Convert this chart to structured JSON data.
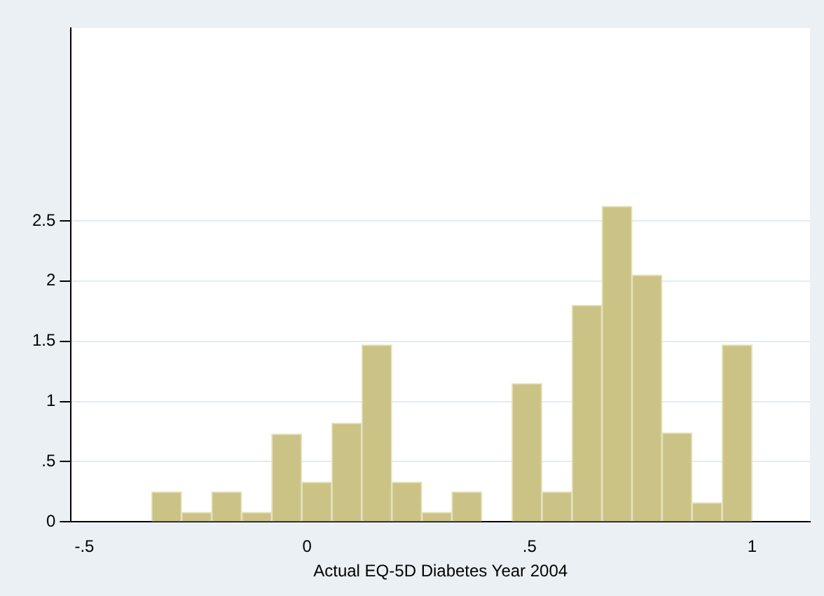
{
  "chart_data": {
    "type": "histogram",
    "xlabel": "Actual EQ-5D Diabetes Year 2004",
    "bins": [
      -0.349,
      -0.2816,
      -0.2141,
      -0.1467,
      -0.0792,
      -0.0118,
      0.0557,
      0.1231,
      0.1906,
      0.258,
      0.3255,
      0.3929,
      0.4604,
      0.5278,
      0.5953,
      0.6627,
      0.7302,
      0.7976,
      0.8651,
      0.9325,
      1.0
    ],
    "values": [
      0.25,
      0.08,
      0.25,
      0.08,
      0.73,
      0.33,
      0.82,
      1.47,
      0.33,
      0.08,
      0.25,
      0,
      1.15,
      0.25,
      1.8,
      2.62,
      2.05,
      0.74,
      0.16,
      1.47
    ],
    "color": "#cbc385",
    "xlim": [
      -0.53,
      1.13
    ],
    "xticks": [
      {
        "value": -0.5,
        "label": "-.5"
      },
      0,
      {
        "value": 0.5,
        "label": ".5"
      },
      1
    ],
    "ylim": [
      0,
      4.1
    ],
    "yticks": [
      0,
      {
        "value": 0.5,
        "label": ".5"
      },
      1,
      {
        "value": 1.5,
        "label": "1.5"
      },
      2,
      {
        "value": 2.5,
        "label": "2.5"
      }
    ],
    "grid": "y"
  }
}
